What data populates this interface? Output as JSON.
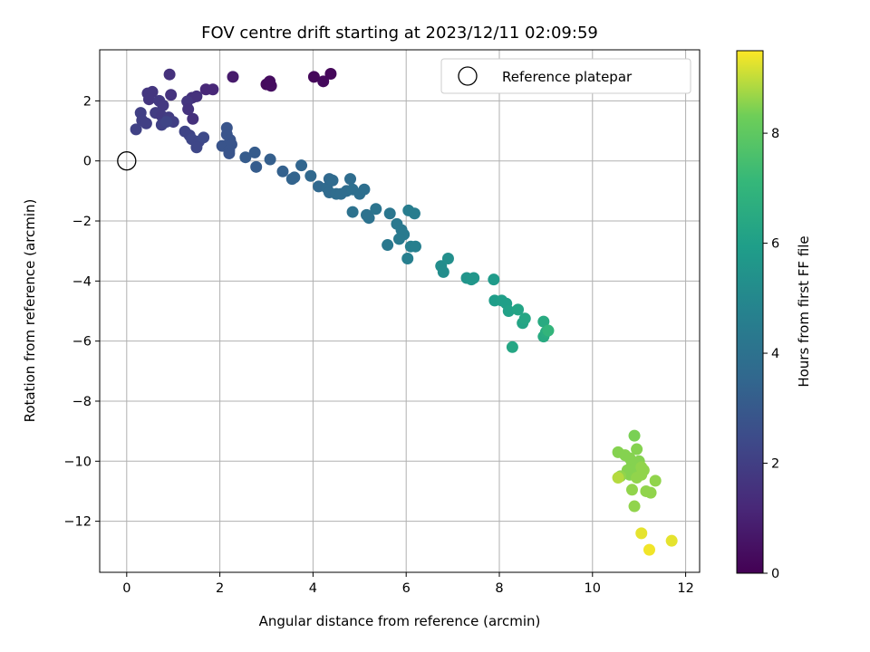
{
  "chart_data": {
    "type": "scatter",
    "title": "FOV centre drift starting at 2023/12/11 02:09:59",
    "xlabel": "Angular distance from reference (arcmin)",
    "ylabel": "Rotation from reference (arcmin)",
    "xlim": [
      -0.58,
      12.3
    ],
    "ylim": [
      -13.7,
      3.7
    ],
    "xticks": [
      0,
      2,
      4,
      6,
      8,
      10,
      12
    ],
    "yticks": [
      -12,
      -10,
      -8,
      -6,
      -4,
      -2,
      0,
      2
    ],
    "grid": true,
    "legend": {
      "placement": "top-right",
      "entries": [
        "Reference platepar"
      ]
    },
    "reference_point": {
      "x": 0,
      "y": 0,
      "label": "Reference platepar"
    },
    "colorbar": {
      "label": "Hours from first FF file",
      "colormap": "viridis",
      "range": [
        0,
        9.5
      ],
      "ticks": [
        0,
        2,
        4,
        6,
        8
      ]
    },
    "points": [
      {
        "x": 3.0,
        "y": 2.55,
        "h": 0.3
      },
      {
        "x": 3.05,
        "y": 2.6,
        "h": 0.3
      },
      {
        "x": 3.1,
        "y": 2.5,
        "h": 0.4
      },
      {
        "x": 3.07,
        "y": 2.65,
        "h": 0.35
      },
      {
        "x": 4.02,
        "y": 2.8,
        "h": 0.2
      },
      {
        "x": 4.22,
        "y": 2.65,
        "h": 0.25
      },
      {
        "x": 4.38,
        "y": 2.9,
        "h": 0.2
      },
      {
        "x": 2.28,
        "y": 2.8,
        "h": 0.8
      },
      {
        "x": 0.92,
        "y": 2.88,
        "h": 1.5
      },
      {
        "x": 1.7,
        "y": 2.38,
        "h": 1.2
      },
      {
        "x": 1.85,
        "y": 2.38,
        "h": 1.2
      },
      {
        "x": 0.45,
        "y": 2.25,
        "h": 1.7
      },
      {
        "x": 0.55,
        "y": 2.3,
        "h": 1.7
      },
      {
        "x": 0.48,
        "y": 2.05,
        "h": 1.7
      },
      {
        "x": 0.95,
        "y": 2.2,
        "h": 1.6
      },
      {
        "x": 1.4,
        "y": 2.1,
        "h": 1.5
      },
      {
        "x": 1.5,
        "y": 2.15,
        "h": 1.5
      },
      {
        "x": 1.3,
        "y": 1.98,
        "h": 1.7
      },
      {
        "x": 0.7,
        "y": 2.0,
        "h": 1.8
      },
      {
        "x": 0.78,
        "y": 1.85,
        "h": 1.8
      },
      {
        "x": 0.62,
        "y": 1.6,
        "h": 1.9
      },
      {
        "x": 0.75,
        "y": 1.5,
        "h": 1.8
      },
      {
        "x": 1.32,
        "y": 1.72,
        "h": 1.6
      },
      {
        "x": 1.42,
        "y": 1.4,
        "h": 1.5
      },
      {
        "x": 0.9,
        "y": 1.45,
        "h": 1.9
      },
      {
        "x": 1.0,
        "y": 1.3,
        "h": 2.0
      },
      {
        "x": 0.3,
        "y": 1.6,
        "h": 2.0
      },
      {
        "x": 0.33,
        "y": 1.35,
        "h": 2.0
      },
      {
        "x": 0.42,
        "y": 1.25,
        "h": 2.0
      },
      {
        "x": 0.2,
        "y": 1.05,
        "h": 2.1
      },
      {
        "x": 0.75,
        "y": 1.2,
        "h": 2.1
      },
      {
        "x": 0.85,
        "y": 1.3,
        "h": 2.2
      },
      {
        "x": 1.25,
        "y": 0.98,
        "h": 2.2
      },
      {
        "x": 1.35,
        "y": 0.85,
        "h": 2.2
      },
      {
        "x": 1.4,
        "y": 0.72,
        "h": 2.3
      },
      {
        "x": 1.55,
        "y": 0.65,
        "h": 2.3
      },
      {
        "x": 1.65,
        "y": 0.78,
        "h": 2.4
      },
      {
        "x": 1.5,
        "y": 0.45,
        "h": 2.3
      },
      {
        "x": 2.05,
        "y": 0.5,
        "h": 2.8
      },
      {
        "x": 2.15,
        "y": 1.1,
        "h": 2.8
      },
      {
        "x": 2.15,
        "y": 0.88,
        "h": 2.8
      },
      {
        "x": 2.22,
        "y": 0.7,
        "h": 2.8
      },
      {
        "x": 2.25,
        "y": 0.55,
        "h": 2.8
      },
      {
        "x": 2.2,
        "y": 0.35,
        "h": 2.8
      },
      {
        "x": 2.2,
        "y": 0.25,
        "h": 2.8
      },
      {
        "x": 2.55,
        "y": 0.12,
        "h": 3.1
      },
      {
        "x": 2.75,
        "y": 0.28,
        "h": 3.1
      },
      {
        "x": 2.78,
        "y": -0.2,
        "h": 3.1
      },
      {
        "x": 3.08,
        "y": 0.05,
        "h": 3.2
      },
      {
        "x": 3.35,
        "y": -0.35,
        "h": 3.3
      },
      {
        "x": 3.6,
        "y": -0.55,
        "h": 3.4
      },
      {
        "x": 3.55,
        "y": -0.6,
        "h": 3.4
      },
      {
        "x": 3.75,
        "y": -0.15,
        "h": 3.5
      },
      {
        "x": 3.95,
        "y": -0.5,
        "h": 3.6
      },
      {
        "x": 4.12,
        "y": -0.85,
        "h": 3.6
      },
      {
        "x": 4.3,
        "y": -0.9,
        "h": 3.7
      },
      {
        "x": 4.35,
        "y": -0.6,
        "h": 3.6
      },
      {
        "x": 4.42,
        "y": -0.65,
        "h": 3.7
      },
      {
        "x": 4.35,
        "y": -1.05,
        "h": 3.7
      },
      {
        "x": 4.5,
        "y": -1.1,
        "h": 3.8
      },
      {
        "x": 4.6,
        "y": -1.1,
        "h": 3.8
      },
      {
        "x": 4.72,
        "y": -1.0,
        "h": 3.8
      },
      {
        "x": 4.8,
        "y": -0.6,
        "h": 3.8
      },
      {
        "x": 4.85,
        "y": -0.95,
        "h": 3.9
      },
      {
        "x": 5.0,
        "y": -1.1,
        "h": 3.9
      },
      {
        "x": 5.1,
        "y": -0.95,
        "h": 3.9
      },
      {
        "x": 4.85,
        "y": -1.7,
        "h": 4.0
      },
      {
        "x": 5.15,
        "y": -1.8,
        "h": 4.0
      },
      {
        "x": 5.2,
        "y": -1.9,
        "h": 4.0
      },
      {
        "x": 5.35,
        "y": -1.6,
        "h": 4.1
      },
      {
        "x": 5.65,
        "y": -1.75,
        "h": 4.2
      },
      {
        "x": 5.8,
        "y": -2.1,
        "h": 4.3
      },
      {
        "x": 5.9,
        "y": -2.3,
        "h": 4.3
      },
      {
        "x": 5.95,
        "y": -2.45,
        "h": 4.4
      },
      {
        "x": 5.85,
        "y": -2.6,
        "h": 4.4
      },
      {
        "x": 5.6,
        "y": -2.8,
        "h": 4.3
      },
      {
        "x": 6.05,
        "y": -1.65,
        "h": 4.5
      },
      {
        "x": 6.18,
        "y": -1.75,
        "h": 4.5
      },
      {
        "x": 6.1,
        "y": -2.85,
        "h": 4.6
      },
      {
        "x": 6.2,
        "y": -2.85,
        "h": 4.6
      },
      {
        "x": 6.03,
        "y": -3.25,
        "h": 4.6
      },
      {
        "x": 6.75,
        "y": -3.5,
        "h": 5.2
      },
      {
        "x": 6.8,
        "y": -3.7,
        "h": 5.2
      },
      {
        "x": 6.9,
        "y": -3.25,
        "h": 5.3
      },
      {
        "x": 7.3,
        "y": -3.9,
        "h": 5.5
      },
      {
        "x": 7.4,
        "y": -3.95,
        "h": 5.6
      },
      {
        "x": 7.45,
        "y": -3.9,
        "h": 5.6
      },
      {
        "x": 7.88,
        "y": -3.95,
        "h": 5.8
      },
      {
        "x": 7.9,
        "y": -4.65,
        "h": 5.9
      },
      {
        "x": 8.05,
        "y": -4.65,
        "h": 6.0
      },
      {
        "x": 8.15,
        "y": -4.75,
        "h": 6.0
      },
      {
        "x": 8.2,
        "y": -5.0,
        "h": 6.1
      },
      {
        "x": 8.4,
        "y": -4.95,
        "h": 6.2
      },
      {
        "x": 8.5,
        "y": -5.4,
        "h": 6.2
      },
      {
        "x": 8.55,
        "y": -5.25,
        "h": 6.3
      },
      {
        "x": 8.28,
        "y": -6.2,
        "h": 6.3
      },
      {
        "x": 8.95,
        "y": -5.35,
        "h": 6.5
      },
      {
        "x": 8.95,
        "y": -5.85,
        "h": 6.5
      },
      {
        "x": 9.0,
        "y": -5.7,
        "h": 6.6
      },
      {
        "x": 9.05,
        "y": -5.65,
        "h": 7.0
      },
      {
        "x": 10.9,
        "y": -9.15,
        "h": 8.4
      },
      {
        "x": 10.55,
        "y": -9.7,
        "h": 8.5
      },
      {
        "x": 10.7,
        "y": -9.8,
        "h": 8.5
      },
      {
        "x": 10.8,
        "y": -9.9,
        "h": 8.5
      },
      {
        "x": 10.95,
        "y": -9.6,
        "h": 8.5
      },
      {
        "x": 11.0,
        "y": -10.0,
        "h": 8.5
      },
      {
        "x": 10.85,
        "y": -10.1,
        "h": 8.5
      },
      {
        "x": 10.9,
        "y": -10.25,
        "h": 8.5
      },
      {
        "x": 11.05,
        "y": -10.2,
        "h": 8.6
      },
      {
        "x": 11.1,
        "y": -10.3,
        "h": 8.6
      },
      {
        "x": 10.75,
        "y": -10.3,
        "h": 8.5
      },
      {
        "x": 10.8,
        "y": -10.45,
        "h": 8.5
      },
      {
        "x": 10.95,
        "y": -10.55,
        "h": 8.6
      },
      {
        "x": 11.05,
        "y": -10.45,
        "h": 8.6
      },
      {
        "x": 10.6,
        "y": -10.5,
        "h": 8.6
      },
      {
        "x": 10.55,
        "y": -10.55,
        "h": 8.9
      },
      {
        "x": 11.35,
        "y": -10.65,
        "h": 8.6
      },
      {
        "x": 10.85,
        "y": -10.95,
        "h": 8.6
      },
      {
        "x": 11.15,
        "y": -11.0,
        "h": 8.6
      },
      {
        "x": 11.25,
        "y": -11.05,
        "h": 8.6
      },
      {
        "x": 10.9,
        "y": -11.5,
        "h": 8.6
      },
      {
        "x": 11.05,
        "y": -12.4,
        "h": 9.3
      },
      {
        "x": 11.7,
        "y": -12.65,
        "h": 9.3
      },
      {
        "x": 11.22,
        "y": -12.95,
        "h": 9.4
      }
    ]
  }
}
